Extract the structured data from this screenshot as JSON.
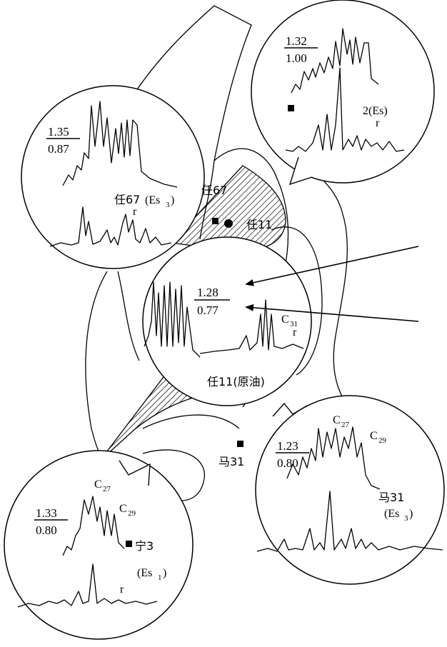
{
  "diagram": {
    "wells": {
      "ren67_map": "任67",
      "ren11_map": "任11",
      "ma31_map": "马31"
    },
    "insets": [
      {
        "id": "ren67",
        "ratio_top": "1.35",
        "ratio_bottom": "0.87",
        "label_cn": "任67",
        "label_fm": "(Es",
        "label_sub": "3",
        "label_close": ")",
        "marker": "r"
      },
      {
        "id": "two",
        "ratio_top": "1.32",
        "ratio_bottom": "1.00",
        "label": "2(Es)",
        "marker": "r"
      },
      {
        "id": "ren11",
        "ratio_top": "1.28",
        "ratio_bottom": "0.77",
        "label_cn": "任11(原油)",
        "peak_c": "C",
        "peak_sub": "31",
        "marker": "r"
      },
      {
        "id": "ma31",
        "ratio_top": "1.23",
        "ratio_bottom": "0.80",
        "c27": "C",
        "c27_sub": "27",
        "c29": "C",
        "c29_sub": "29",
        "label_cn": "马31",
        "label_fm": "(Es",
        "label_sub": "3",
        "label_close": ")"
      },
      {
        "id": "ning3",
        "ratio_top": "1.33",
        "ratio_bottom": "0.80",
        "c27": "C",
        "c27_sub": "27",
        "c29": "C",
        "c29_sub": "29",
        "label_cn": "宁3",
        "label_fm": "(Es",
        "label_sub": "1",
        "label_close": ")",
        "marker": "r"
      }
    ]
  }
}
